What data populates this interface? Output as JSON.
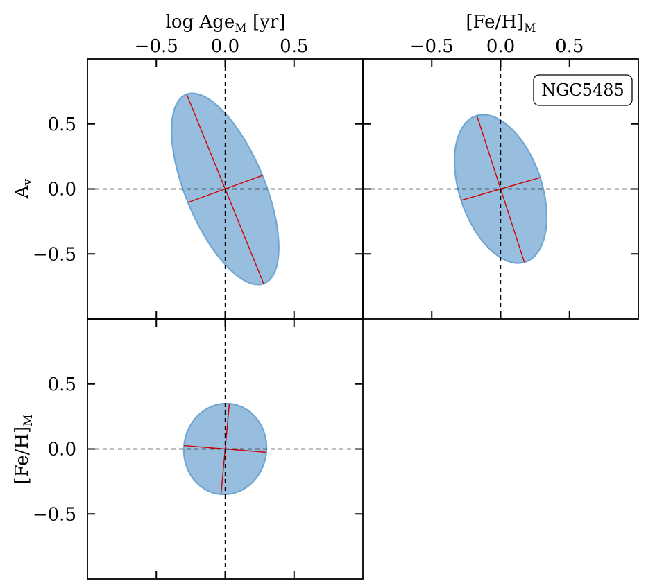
{
  "figure": {
    "label": "NGC5485"
  },
  "chart_data": [
    {
      "id": "age-vs-av",
      "type": "ellipse",
      "x_param": "logAge",
      "y_param": "Av",
      "xlim": [
        -1.0,
        1.0
      ],
      "ylim": [
        -1.0,
        1.0
      ],
      "x_ticks": [
        -0.5,
        0.0,
        0.5
      ],
      "y_ticks": [
        -0.5,
        0.0,
        0.5
      ],
      "x_tick_labels": [
        "−0.5",
        "0.0",
        "0.5"
      ],
      "y_tick_labels": [
        "−0.5",
        "0.0",
        "0.5"
      ],
      "show_top_labels": true,
      "show_left_labels": true,
      "center": [
        0.0,
        0.0
      ],
      "semi_major": 0.78,
      "semi_minor": 0.29,
      "angle_deg": 111
    },
    {
      "id": "feh-vs-av",
      "type": "ellipse",
      "x_param": "FeH",
      "y_param": "Av",
      "xlim": [
        -1.0,
        1.0
      ],
      "ylim": [
        -1.0,
        1.0
      ],
      "x_ticks": [
        -0.5,
        0.0,
        0.5
      ],
      "y_ticks": [
        -0.5,
        0.0,
        0.5
      ],
      "x_tick_labels": [
        "−0.5",
        "0.0",
        "0.5"
      ],
      "y_tick_labels": [
        "−0.5",
        "0.0",
        "0.5"
      ],
      "show_top_labels": true,
      "show_left_labels": false,
      "center": [
        0.0,
        0.0
      ],
      "semi_major": 0.59,
      "semi_minor": 0.3,
      "angle_deg": 107
    },
    {
      "id": "age-vs-feh",
      "type": "ellipse",
      "x_param": "logAge",
      "y_param": "FeH",
      "xlim": [
        -1.0,
        1.0
      ],
      "ylim": [
        -1.0,
        1.0
      ],
      "x_ticks": [
        -0.5,
        0.0,
        0.5
      ],
      "y_ticks": [
        -0.5,
        0.0,
        0.5
      ],
      "x_tick_labels": [
        "−0.5",
        "0.0",
        "0.5"
      ],
      "y_tick_labels": [
        "−0.5",
        "0.0",
        "0.5"
      ],
      "show_top_labels": false,
      "show_left_labels": true,
      "center": [
        0.0,
        0.0
      ],
      "semi_major": 0.35,
      "semi_minor": 0.3,
      "angle_deg": 85
    }
  ],
  "axis_titles": {
    "top_left_main": "log Age",
    "top_left_sub": "M",
    "top_left_unit": " [yr]",
    "top_right_main": "[Fe/H]",
    "top_right_sub": "M",
    "left_top_main": "A",
    "left_top_sub": "v",
    "left_bottom_main": "[Fe/H]",
    "left_bottom_sub": "M"
  },
  "colors": {
    "ellipse_fill": "#97bede",
    "ellipse_edge": "#6fa6d2",
    "axis_line": "#d40000",
    "guide": "#000000"
  }
}
